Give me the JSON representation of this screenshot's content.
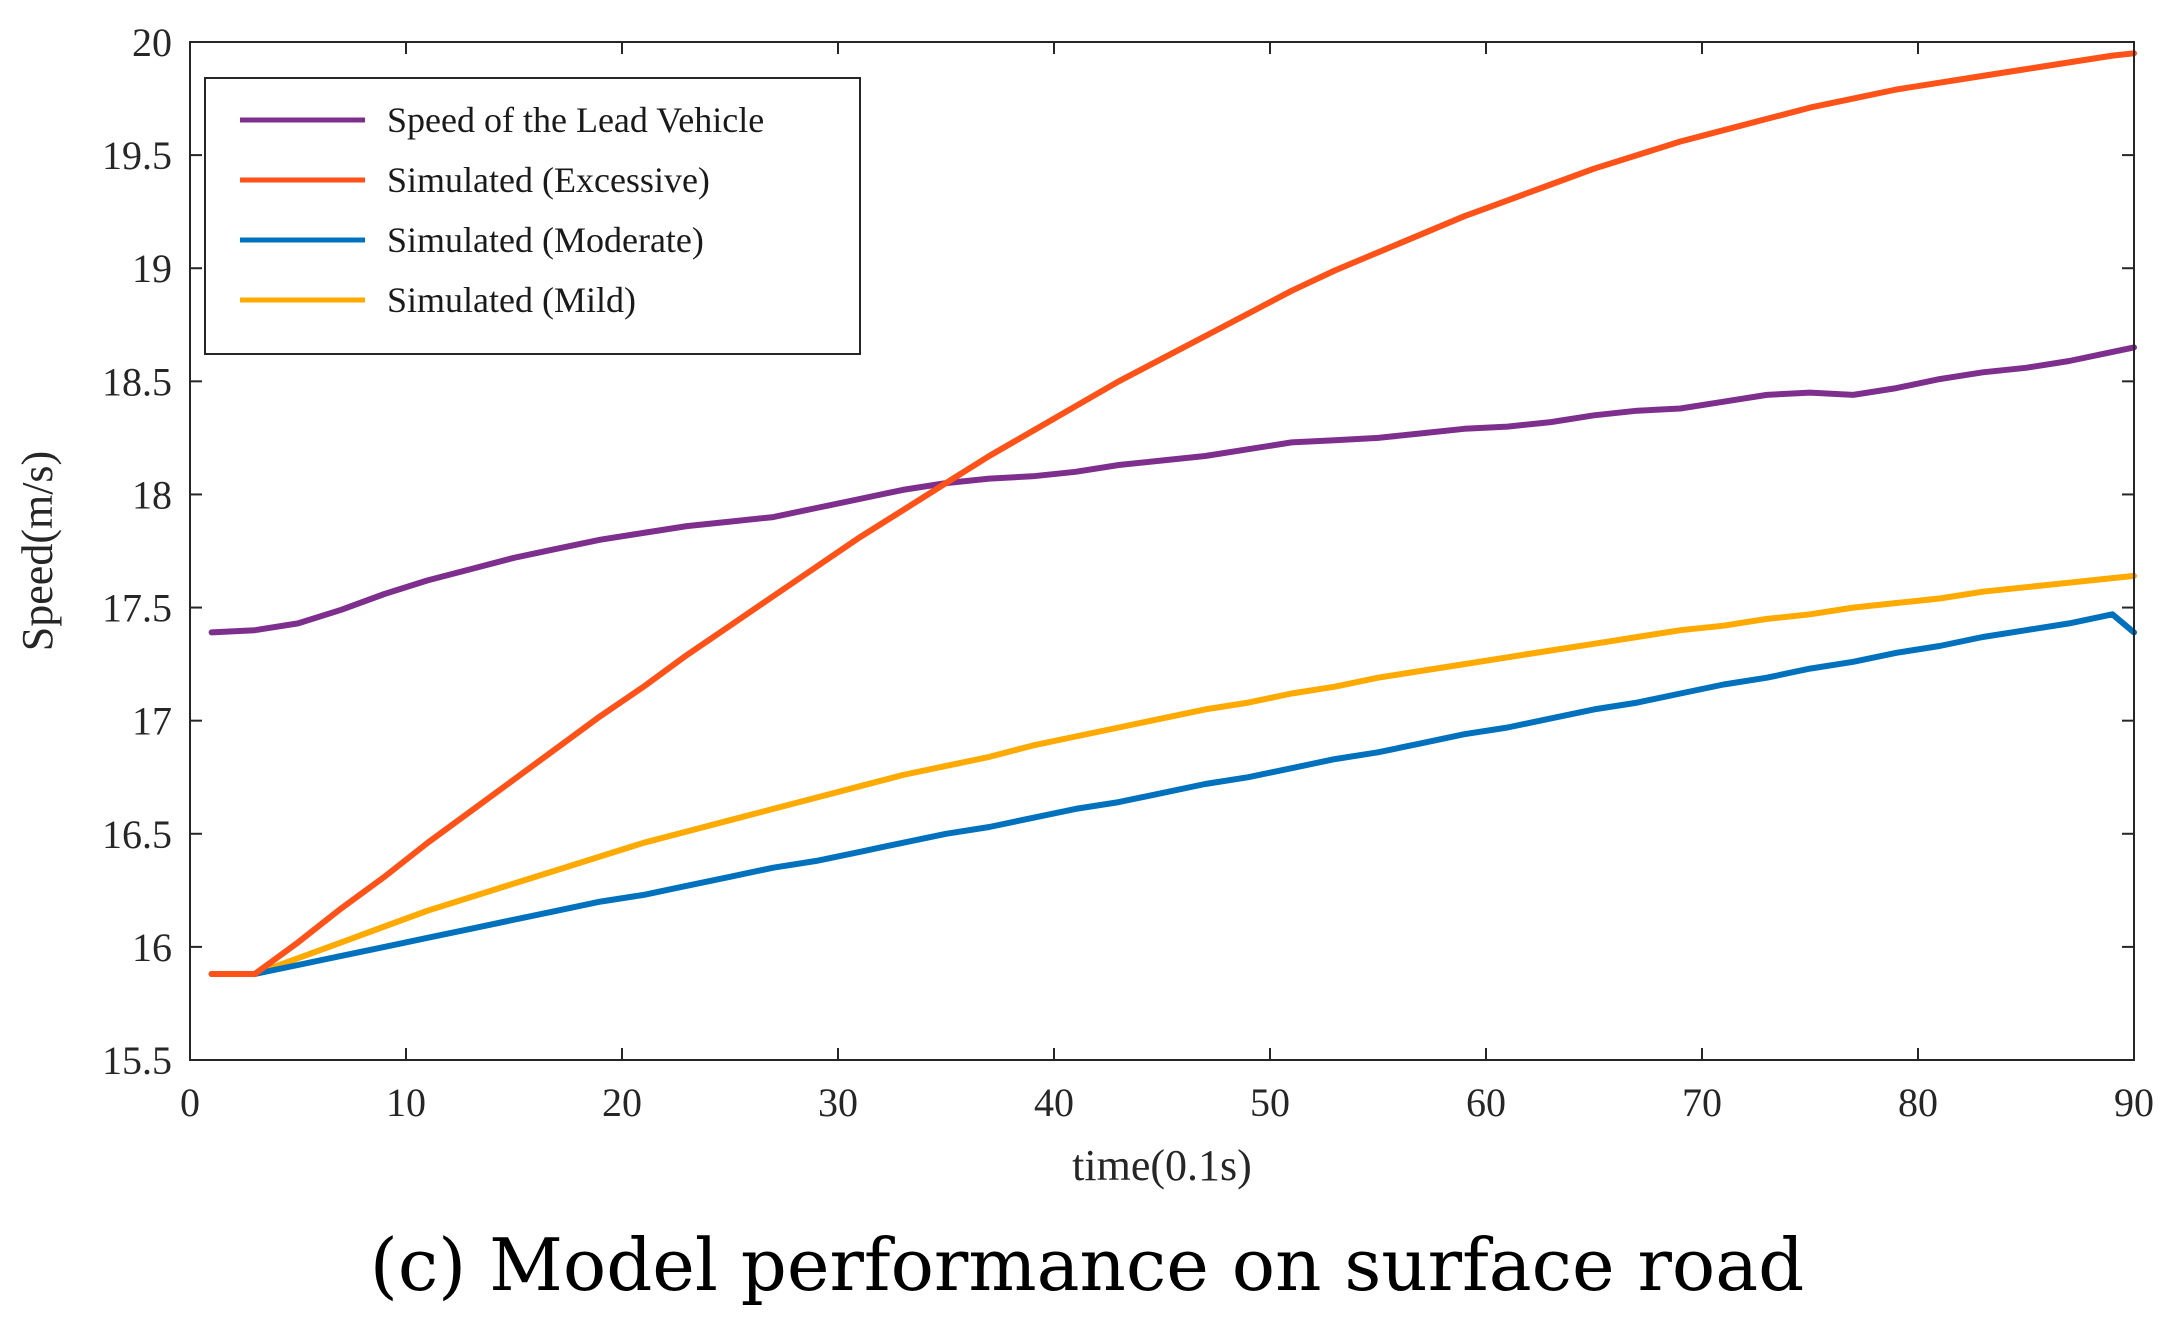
{
  "chart_data": {
    "type": "line",
    "title": "",
    "xlabel": "time(0.1s)",
    "ylabel": "Speed(m/s)",
    "xlim": [
      0,
      90
    ],
    "ylim": [
      15.5,
      20
    ],
    "xticks": [
      0,
      10,
      20,
      30,
      40,
      50,
      60,
      70,
      80,
      90
    ],
    "yticks": [
      15.5,
      16,
      16.5,
      17,
      17.5,
      18,
      18.5,
      19,
      19.5,
      20
    ],
    "xtick_labels": [
      "0",
      "10",
      "20",
      "30",
      "40",
      "50",
      "60",
      "70",
      "80",
      "90"
    ],
    "ytick_labels": [
      "15.5",
      "16",
      "16.5",
      "17",
      "17.5",
      "18",
      "18.5",
      "19",
      "19.5",
      "20"
    ],
    "grid": false,
    "legend_position": "top-left",
    "x": [
      1,
      3,
      5,
      7,
      9,
      11,
      13,
      15,
      17,
      19,
      21,
      23,
      25,
      27,
      29,
      31,
      33,
      35,
      37,
      39,
      41,
      43,
      45,
      47,
      49,
      51,
      53,
      55,
      57,
      59,
      61,
      63,
      65,
      67,
      69,
      71,
      73,
      75,
      77,
      79,
      81,
      83,
      85,
      87,
      89,
      90
    ],
    "series": [
      {
        "name": "Speed of the Lead Vehicle",
        "color": "#7E2F8E",
        "values": [
          17.39,
          17.4,
          17.43,
          17.49,
          17.56,
          17.62,
          17.67,
          17.72,
          17.76,
          17.8,
          17.83,
          17.86,
          17.88,
          17.9,
          17.94,
          17.98,
          18.02,
          18.05,
          18.07,
          18.08,
          18.1,
          18.13,
          18.15,
          18.17,
          18.2,
          18.23,
          18.24,
          18.25,
          18.27,
          18.29,
          18.3,
          18.32,
          18.35,
          18.37,
          18.38,
          18.41,
          18.44,
          18.45,
          18.44,
          18.47,
          18.51,
          18.54,
          18.56,
          18.59,
          18.63,
          18.65
        ]
      },
      {
        "name": "Simulated (Excessive)",
        "color": "#FF5219",
        "values": [
          15.88,
          15.88,
          16.02,
          16.17,
          16.31,
          16.46,
          16.6,
          16.74,
          16.88,
          17.02,
          17.15,
          17.29,
          17.42,
          17.55,
          17.68,
          17.81,
          17.93,
          18.05,
          18.17,
          18.28,
          18.39,
          18.5,
          18.6,
          18.7,
          18.8,
          18.9,
          18.99,
          19.07,
          19.15,
          19.23,
          19.3,
          19.37,
          19.44,
          19.5,
          19.56,
          19.61,
          19.66,
          19.71,
          19.75,
          19.79,
          19.82,
          19.85,
          19.88,
          19.91,
          19.94,
          19.95
        ]
      },
      {
        "name": "Simulated (Moderate)",
        "color": "#0072BD",
        "values": [
          15.88,
          15.88,
          15.92,
          15.96,
          16.0,
          16.04,
          16.08,
          16.12,
          16.16,
          16.2,
          16.23,
          16.27,
          16.31,
          16.35,
          16.38,
          16.42,
          16.46,
          16.5,
          16.53,
          16.57,
          16.61,
          16.64,
          16.68,
          16.72,
          16.75,
          16.79,
          16.83,
          16.86,
          16.9,
          16.94,
          16.97,
          17.01,
          17.05,
          17.08,
          17.12,
          17.16,
          17.19,
          17.23,
          17.26,
          17.3,
          17.33,
          17.37,
          17.4,
          17.43,
          17.47,
          17.39
        ]
      },
      {
        "name": "Simulated (Mild)",
        "color": "#FFAA00",
        "values": [
          15.88,
          15.88,
          15.95,
          16.02,
          16.09,
          16.16,
          16.22,
          16.28,
          16.34,
          16.4,
          16.46,
          16.51,
          16.56,
          16.61,
          16.66,
          16.71,
          16.76,
          16.8,
          16.84,
          16.89,
          16.93,
          16.97,
          17.01,
          17.05,
          17.08,
          17.12,
          17.15,
          17.19,
          17.22,
          17.25,
          17.28,
          17.31,
          17.34,
          17.37,
          17.4,
          17.42,
          17.45,
          17.47,
          17.5,
          17.52,
          17.54,
          17.57,
          17.59,
          17.61,
          17.63,
          17.64
        ]
      }
    ]
  },
  "caption": "(c) Model performance on surface road"
}
